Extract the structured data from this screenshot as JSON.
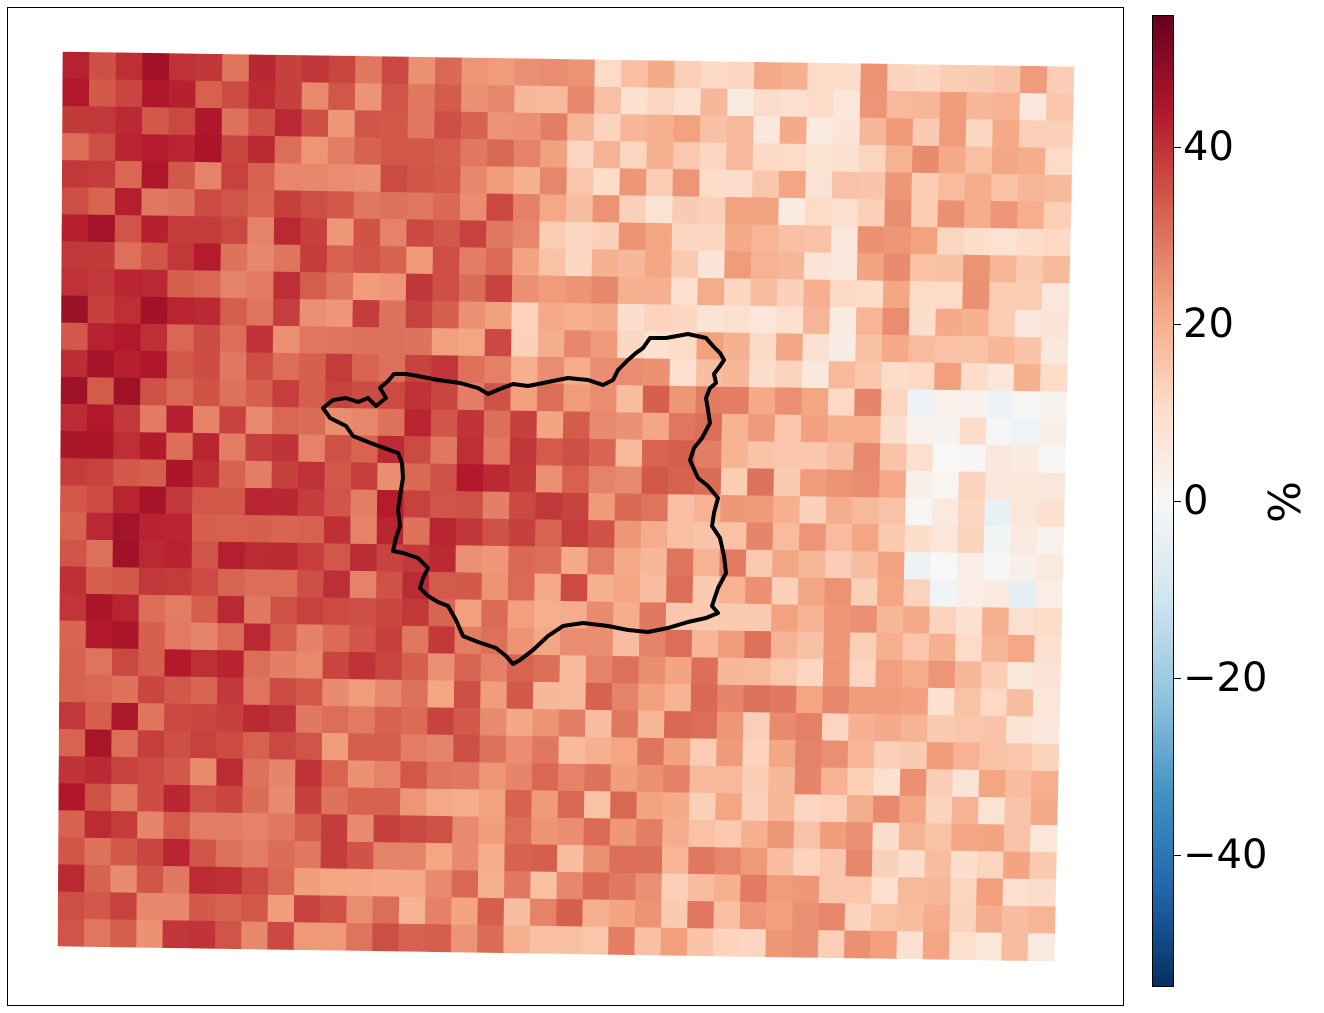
{
  "map": {
    "type": "gridded-field",
    "value_range": [
      -55,
      55
    ],
    "colormap": "RdBu_r",
    "colormap_stops": [
      "#053061",
      "#2166ac",
      "#4393c3",
      "#92c5de",
      "#d1e5f0",
      "#f7f7f7",
      "#fddbc7",
      "#f4a582",
      "#d6604d",
      "#b2182b",
      "#67001f"
    ],
    "grid_rows": 33,
    "grid_cols": 38,
    "region_outline_color": "#000000",
    "boundary": "region-outline"
  },
  "colorbar": {
    "label": "%",
    "min": -55,
    "max": 55,
    "ticks": [
      {
        "value": 40,
        "label": "40"
      },
      {
        "value": 20,
        "label": "20"
      },
      {
        "value": 0,
        "label": "0"
      },
      {
        "value": -20,
        "label": "−20"
      },
      {
        "value": -40,
        "label": "−40"
      }
    ]
  }
}
